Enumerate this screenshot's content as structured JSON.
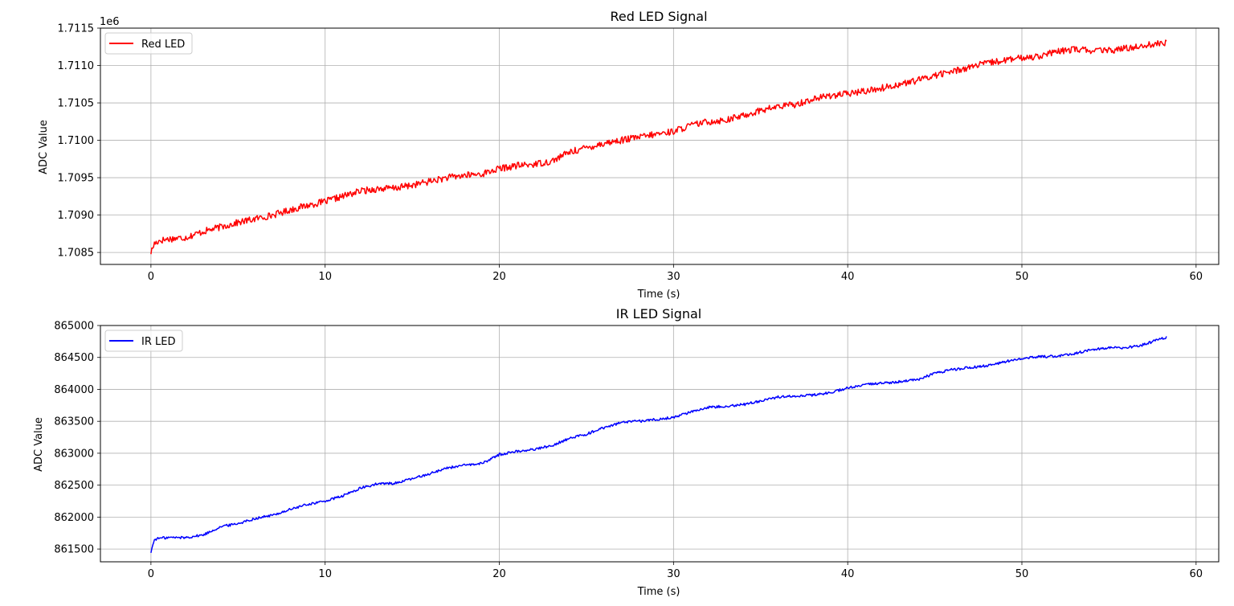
{
  "chart_data": [
    {
      "type": "line",
      "title": "Red LED Signal",
      "xlabel": "Time (s)",
      "ylabel": "ADC Value",
      "offset_text": "1e6",
      "xlim": [
        -2.9,
        61.3
      ],
      "ylim": [
        1.70834,
        1.7115
      ],
      "xticks": [
        0,
        10,
        20,
        30,
        40,
        50,
        60
      ],
      "xtick_labels": [
        "0",
        "10",
        "20",
        "30",
        "40",
        "50",
        "60"
      ],
      "yticks": [
        1.7085,
        1.709,
        1.7095,
        1.71,
        1.7105,
        1.711,
        1.7115
      ],
      "ytick_labels": [
        "1.7085",
        "1.7090",
        "1.7095",
        "1.7100",
        "1.7105",
        "1.7110",
        "1.7115"
      ],
      "grid": true,
      "legend": "upper-left",
      "color": "#ff0000",
      "series": [
        {
          "name": "Red LED",
          "noise": 4.5e-05,
          "x": [
            0,
            0.2,
            0.5,
            1,
            2,
            3,
            4,
            5,
            6,
            7,
            8,
            9,
            10,
            11,
            12,
            13,
            14,
            15,
            16,
            17,
            18,
            19,
            20,
            21,
            22,
            23,
            24,
            25,
            26,
            27,
            28,
            29,
            30,
            31,
            32,
            33,
            34,
            35,
            36,
            37,
            38,
            39,
            40,
            41,
            42,
            43,
            44,
            45,
            46,
            47,
            48,
            49,
            50,
            51,
            52,
            53,
            54,
            55,
            56,
            57,
            58.3
          ],
          "y": [
            1.7085,
            1.70862,
            1.70866,
            1.70868,
            1.7087,
            1.70878,
            1.70884,
            1.7089,
            1.70895,
            1.709,
            1.70907,
            1.70913,
            1.70918,
            1.70925,
            1.70932,
            1.70935,
            1.70936,
            1.7094,
            1.70945,
            1.7095,
            1.70953,
            1.70955,
            1.70962,
            1.70966,
            1.70968,
            1.70972,
            1.70984,
            1.7099,
            1.70996,
            1.71,
            1.71004,
            1.71008,
            1.71012,
            1.7102,
            1.71025,
            1.71027,
            1.71033,
            1.7104,
            1.71045,
            1.71048,
            1.71055,
            1.7106,
            1.71062,
            1.71066,
            1.7107,
            1.71075,
            1.7108,
            1.71087,
            1.71092,
            1.71098,
            1.71103,
            1.71107,
            1.7111,
            1.71113,
            1.71118,
            1.71122,
            1.7112,
            1.7112,
            1.71123,
            1.71127,
            1.7113
          ]
        }
      ]
    },
    {
      "type": "line",
      "title": "IR LED Signal",
      "xlabel": "Time (s)",
      "ylabel": "ADC Value",
      "xlim": [
        -2.9,
        61.3
      ],
      "ylim": [
        861300,
        865000
      ],
      "xticks": [
        0,
        10,
        20,
        30,
        40,
        50,
        60
      ],
      "xtick_labels": [
        "0",
        "10",
        "20",
        "30",
        "40",
        "50",
        "60"
      ],
      "yticks": [
        861500,
        862000,
        862500,
        863000,
        863500,
        864000,
        864500,
        865000
      ],
      "ytick_labels": [
        "861500",
        "862000",
        "862500",
        "863000",
        "863500",
        "864000",
        "864500",
        "865000"
      ],
      "grid": true,
      "legend": "upper-left",
      "color": "#0000ff",
      "series": [
        {
          "name": "IR LED",
          "noise": 20,
          "x": [
            0,
            0.2,
            0.5,
            1,
            2,
            3,
            4,
            5,
            6,
            7,
            8,
            9,
            10,
            11,
            12,
            13,
            14,
            15,
            16,
            17,
            18,
            19,
            20,
            21,
            22,
            23,
            24,
            25,
            26,
            27,
            28,
            29,
            30,
            31,
            32,
            33,
            34,
            35,
            36,
            37,
            38,
            39,
            40,
            41,
            42,
            43,
            44,
            45,
            46,
            47,
            48,
            49,
            50,
            51,
            52,
            53,
            54,
            55,
            56,
            57,
            58.3
          ],
          "y": [
            861450,
            861650,
            861670,
            861680,
            861680,
            861720,
            861850,
            861900,
            861980,
            862030,
            862120,
            862200,
            862250,
            862330,
            862450,
            862520,
            862530,
            862600,
            862680,
            862770,
            862810,
            862840,
            862980,
            863030,
            863060,
            863120,
            863230,
            863300,
            863400,
            863480,
            863500,
            863530,
            863560,
            863650,
            863720,
            863740,
            863760,
            863820,
            863880,
            863900,
            863910,
            863950,
            864020,
            864070,
            864100,
            864120,
            864150,
            864250,
            864310,
            864340,
            864370,
            864430,
            864490,
            864510,
            864520,
            864560,
            864620,
            864650,
            864650,
            864700,
            864820
          ]
        }
      ]
    }
  ]
}
